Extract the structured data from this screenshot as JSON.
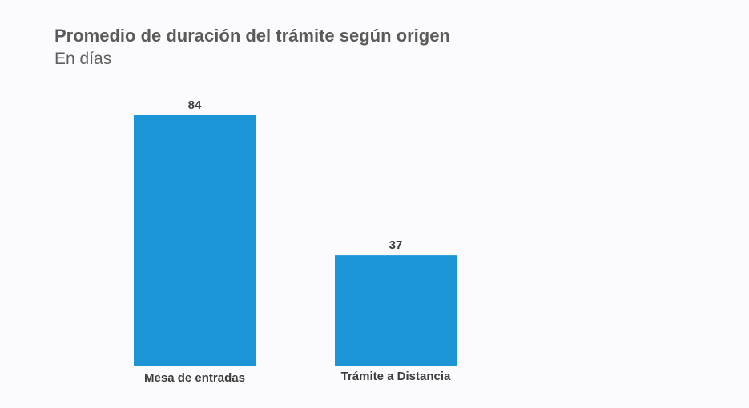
{
  "chart_data": {
    "type": "bar",
    "title": "Promedio de duración del trámite según origen",
    "subtitle": "En días",
    "categories": [
      "Mesa de entradas",
      "Trámite a Distancia"
    ],
    "values": [
      84,
      37
    ],
    "ylim": [
      0,
      100
    ],
    "grid": false,
    "bar_color": "#1b95d6",
    "axis_color": "#c8c8c8"
  }
}
